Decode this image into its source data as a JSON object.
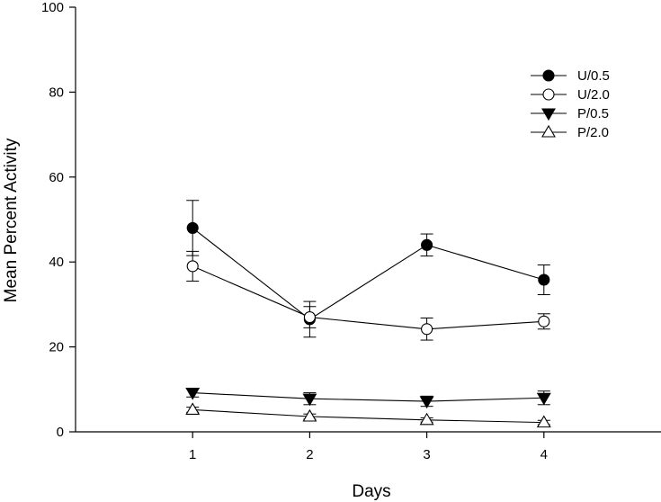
{
  "chart_data": {
    "type": "line",
    "title": "",
    "xlabel": "Days",
    "ylabel": "Mean Percent Activity",
    "xlim": [
      0,
      5
    ],
    "ylim": [
      0,
      100
    ],
    "x_ticks": [
      1,
      2,
      3,
      4
    ],
    "y_ticks": [
      0,
      20,
      40,
      60,
      80,
      100
    ],
    "x": [
      1,
      2,
      3,
      4
    ],
    "grid": false,
    "legend_position": "top-right",
    "series": [
      {
        "name": "U/0.5",
        "marker": "circle",
        "fill": "#000000",
        "values": [
          48,
          26.5,
          44,
          35.8
        ],
        "errors": [
          6.5,
          4.2,
          2.6,
          3.5
        ]
      },
      {
        "name": "U/2.0",
        "marker": "circle",
        "fill": "#ffffff",
        "values": [
          39,
          27,
          24.2,
          26
        ],
        "errors": [
          3.5,
          2.5,
          2.6,
          1.8
        ]
      },
      {
        "name": "P/0.5",
        "marker": "triangle-down",
        "fill": "#000000",
        "values": [
          9.2,
          7.8,
          7.2,
          8
        ],
        "errors": [
          1,
          1.4,
          1.2,
          1.6
        ]
      },
      {
        "name": "P/2.0",
        "marker": "triangle-up",
        "fill": "#ffffff",
        "values": [
          5.2,
          3.6,
          2.8,
          2.2
        ],
        "errors": [
          0.6,
          0.6,
          0.5,
          0.5
        ]
      }
    ]
  }
}
